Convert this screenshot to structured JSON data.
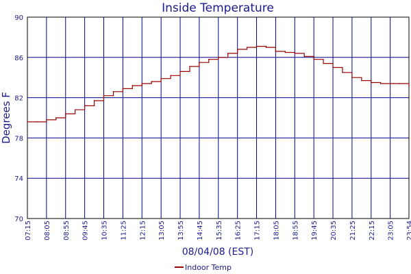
{
  "chart_data": {
    "type": "line",
    "title": "Inside Temperature",
    "xlabel": "08/04/08 (EST)",
    "ylabel": "Degrees F",
    "ylim": [
      70,
      90
    ],
    "yticks": [
      70,
      74,
      78,
      82,
      86,
      90
    ],
    "ytick_labels": [
      "70",
      "74",
      "78",
      "82",
      "86",
      "90"
    ],
    "xtick_labels": [
      "07:15",
      "08:05",
      "08:55",
      "09:45",
      "10:35",
      "11:25",
      "12:15",
      "13:05",
      "13:55",
      "14:45",
      "15:35",
      "16:25",
      "17:15",
      "18:05",
      "18:55",
      "19:45",
      "20:35",
      "21:25",
      "22:15",
      "23:05",
      "23:54"
    ],
    "grid": true,
    "legend": "bottom-center",
    "series": [
      {
        "name": "Indoor Temp",
        "color": "#990000",
        "x": [
          "07:15",
          "07:40",
          "08:05",
          "08:30",
          "08:55",
          "09:20",
          "09:45",
          "10:10",
          "10:35",
          "11:00",
          "11:25",
          "11:50",
          "12:15",
          "12:40",
          "13:05",
          "13:30",
          "13:55",
          "14:20",
          "14:45",
          "15:10",
          "15:35",
          "16:00",
          "16:25",
          "16:50",
          "17:15",
          "17:40",
          "18:05",
          "18:30",
          "18:55",
          "19:20",
          "19:45",
          "20:10",
          "20:35",
          "21:00",
          "21:25",
          "21:50",
          "22:15",
          "22:40",
          "23:05",
          "23:30",
          "23:54"
        ],
        "values": [
          79.6,
          79.6,
          79.8,
          80.0,
          80.4,
          80.8,
          81.2,
          81.7,
          82.2,
          82.6,
          82.9,
          83.2,
          83.4,
          83.6,
          83.9,
          84.2,
          84.6,
          85.1,
          85.5,
          85.8,
          86.0,
          86.4,
          86.8,
          87.0,
          87.1,
          87.0,
          86.6,
          86.5,
          86.4,
          86.1,
          85.8,
          85.4,
          85.0,
          84.5,
          84.0,
          83.7,
          83.5,
          83.4,
          83.4,
          83.4,
          83.2
        ]
      }
    ]
  }
}
